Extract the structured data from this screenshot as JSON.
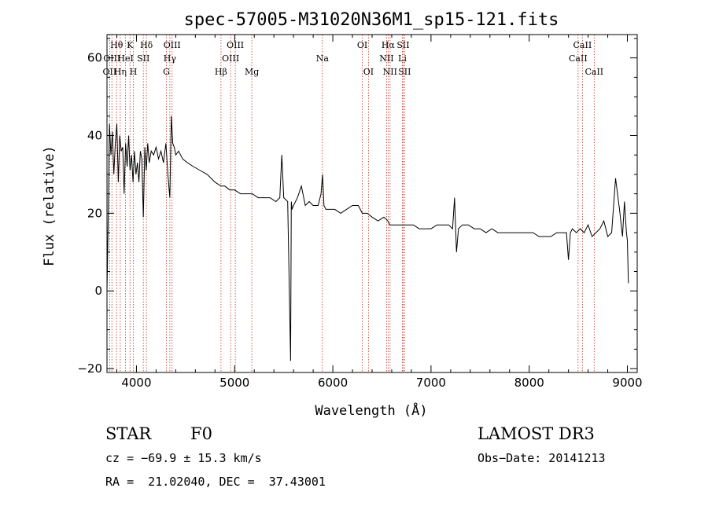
{
  "chart_data": {
    "type": "line",
    "title": "spec-57005-M31020N36M1_sp15-121.fits",
    "xlabel": "Wavelength (Å)",
    "ylabel": "Flux (relative)",
    "xlim": [
      3700,
      9100
    ],
    "ylim": [
      -21,
      66
    ],
    "xticks": [
      4000,
      5000,
      6000,
      7000,
      8000,
      9000
    ],
    "yticks": [
      -20,
      0,
      20,
      40,
      60
    ],
    "xticks_labels": [
      "4000",
      "5000",
      "6000",
      "7000",
      "8000",
      "9000"
    ],
    "yticks_labels": [
      "−20",
      "0",
      "20",
      "40",
      "60"
    ],
    "series": [
      {
        "name": "flux",
        "x": [
          3700,
          3712,
          3725,
          3740,
          3755,
          3770,
          3785,
          3800,
          3815,
          3830,
          3845,
          3860,
          3875,
          3890,
          3905,
          3920,
          3935,
          3950,
          3965,
          3980,
          3995,
          4010,
          4025,
          4040,
          4055,
          4070,
          4085,
          4100,
          4115,
          4130,
          4150,
          4175,
          4200,
          4225,
          4250,
          4275,
          4300,
          4320,
          4340,
          4355,
          4370,
          4385,
          4400,
          4430,
          4470,
          4520,
          4580,
          4650,
          4720,
          4800,
          4860,
          4900,
          4950,
          5000,
          5060,
          5120,
          5180,
          5240,
          5300,
          5360,
          5420,
          5460,
          5480,
          5500,
          5540,
          5570,
          5577,
          5584,
          5600,
          5640,
          5680,
          5720,
          5760,
          5800,
          5850,
          5880,
          5895,
          5910,
          5930,
          5970,
          6020,
          6080,
          6140,
          6200,
          6260,
          6300,
          6350,
          6400,
          6460,
          6520,
          6560,
          6580,
          6600,
          6640,
          6700,
          6760,
          6820,
          6880,
          6940,
          7000,
          7060,
          7120,
          7180,
          7220,
          7240,
          7260,
          7280,
          7320,
          7380,
          7440,
          7500,
          7560,
          7620,
          7680,
          7740,
          7800,
          7860,
          7920,
          7980,
          8040,
          8100,
          8160,
          8220,
          8280,
          8340,
          8380,
          8400,
          8420,
          8440,
          8480,
          8520,
          8560,
          8600,
          8640,
          8680,
          8720,
          8760,
          8800,
          8840,
          8880,
          8920,
          8950,
          8970,
          8990,
          9000,
          9010
        ],
        "y": [
          0,
          18,
          43,
          35,
          41,
          30,
          38,
          43,
          28,
          40,
          36,
          37,
          25,
          38,
          32,
          40,
          31,
          35,
          28,
          36,
          30,
          33,
          28,
          36,
          34,
          19,
          37,
          31,
          38,
          33,
          36,
          35,
          37,
          34,
          36,
          33,
          38,
          30,
          24,
          45,
          38,
          37,
          35,
          36,
          34,
          33,
          32,
          31,
          30,
          28,
          27,
          27,
          26,
          26,
          25,
          25,
          25,
          24,
          24,
          24,
          23,
          24,
          35,
          24,
          23,
          -18,
          23,
          21,
          22,
          24,
          27,
          22,
          23,
          22,
          22,
          25,
          30,
          22,
          21,
          21,
          21,
          20,
          21,
          22,
          22,
          20,
          20,
          19,
          18,
          19,
          18,
          17,
          17,
          17,
          17,
          17,
          17,
          16,
          16,
          16,
          17,
          17,
          17,
          16,
          24,
          10,
          16,
          17,
          17,
          16,
          16,
          15,
          16,
          15,
          15,
          15,
          15,
          15,
          15,
          15,
          14,
          14,
          14,
          15,
          15,
          15,
          8,
          15,
          16,
          15,
          16,
          15,
          17,
          14,
          15,
          16,
          18,
          14,
          15,
          29,
          21,
          14,
          23,
          15,
          13,
          2
        ]
      }
    ],
    "spectral_lines": [
      {
        "label": "Hθ",
        "x": 3798,
        "row": 1
      },
      {
        "label": "OII",
        "x": 3727,
        "row": 3
      },
      {
        "label": "OIII",
        "x": 3750,
        "row": 2
      },
      {
        "label": "Hη",
        "x": 3835,
        "row": 3
      },
      {
        "label": "HeI",
        "x": 3889,
        "row": 2
      },
      {
        "label": "K",
        "x": 3934,
        "row": 1
      },
      {
        "label": "H",
        "x": 3969,
        "row": 3
      },
      {
        "label": "SII",
        "x": 4070,
        "row": 2
      },
      {
        "label": "Hδ",
        "x": 4102,
        "row": 1
      },
      {
        "label": "G",
        "x": 4305,
        "row": 3
      },
      {
        "label": "Hγ",
        "x": 4340,
        "row": 2
      },
      {
        "label": "OIII",
        "x": 4363,
        "row": 1
      },
      {
        "label": "Hβ",
        "x": 4861,
        "row": 3
      },
      {
        "label": "OIII",
        "x": 4959,
        "row": 2
      },
      {
        "label": "OIII",
        "x": 5007,
        "row": 1
      },
      {
        "label": "Mg",
        "x": 5175,
        "row": 3
      },
      {
        "label": "Na",
        "x": 5894,
        "row": 2
      },
      {
        "label": "OI",
        "x": 6300,
        "row": 1
      },
      {
        "label": "OI",
        "x": 6363,
        "row": 3
      },
      {
        "label": "NII",
        "x": 6548,
        "row": 2
      },
      {
        "label": "Hα",
        "x": 6563,
        "row": 1
      },
      {
        "label": "NII",
        "x": 6583,
        "row": 3
      },
      {
        "label": "SII",
        "x": 6716,
        "row": 1
      },
      {
        "label": "Li",
        "x": 6708,
        "row": 2
      },
      {
        "label": "SII",
        "x": 6731,
        "row": 3
      },
      {
        "label": "CaII",
        "x": 8498,
        "row": 2
      },
      {
        "label": "CaII",
        "x": 8542,
        "row": 1
      },
      {
        "label": "CaII",
        "x": 8662,
        "row": 3
      }
    ]
  },
  "info": {
    "class": "STAR",
    "subclass": "F0",
    "survey": "LAMOST DR3",
    "cz": "cz = −69.9 ± 15.3 km/s",
    "obs_date": "Obs−Date: 20141213",
    "coords": "RA =  21.02040, DEC =  37.43001"
  }
}
